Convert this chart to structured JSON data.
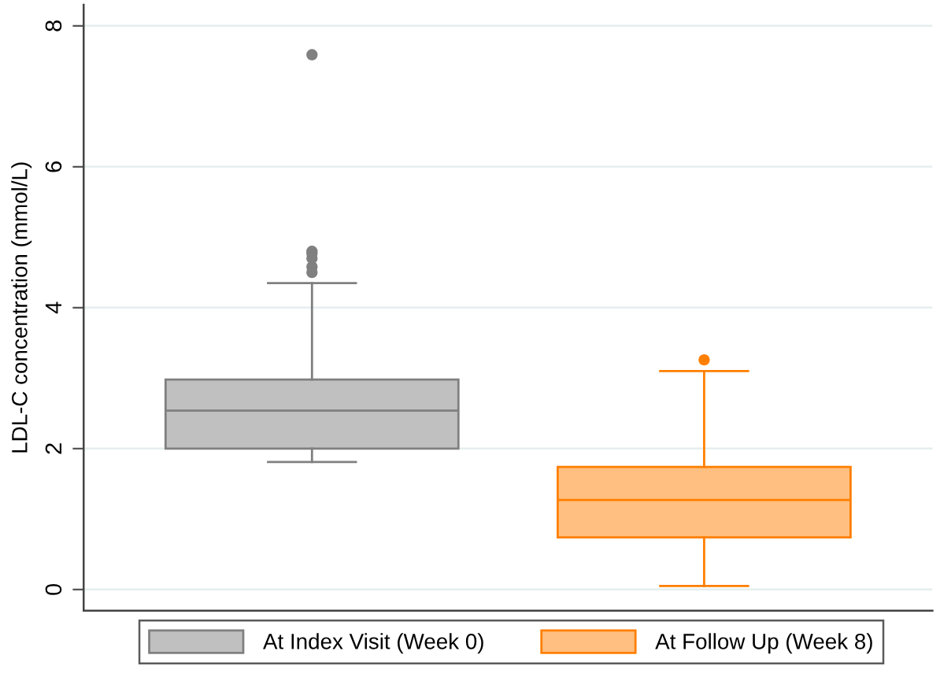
{
  "chart_data": {
    "type": "box",
    "ylabel": "LDL-C concentration (mmol/L)",
    "categories": [
      null
    ],
    "series": [
      {
        "name": "At Index Visit (Week 0)",
        "color": "#808080",
        "boxes": [
          {
            "low": 1.81,
            "q1": 2.0,
            "median": 2.54,
            "q3": 2.98,
            "high": 4.35,
            "outliers": [
              4.5,
              4.58,
              4.7,
              4.77,
              4.8,
              7.59
            ]
          }
        ]
      },
      {
        "name": "At Follow Up (Week 8)",
        "color": "#ff7f00",
        "boxes": [
          {
            "low": 0.05,
            "q1": 0.74,
            "median": 1.27,
            "q3": 1.74,
            "high": 3.1,
            "outliers": [
              3.26
            ]
          }
        ]
      }
    ],
    "ylim": [
      -0.3,
      8.3
    ],
    "yticks": [
      0,
      2,
      4,
      6,
      8
    ],
    "grid": "y",
    "legend": "bottom",
    "tick_labels": "y"
  }
}
